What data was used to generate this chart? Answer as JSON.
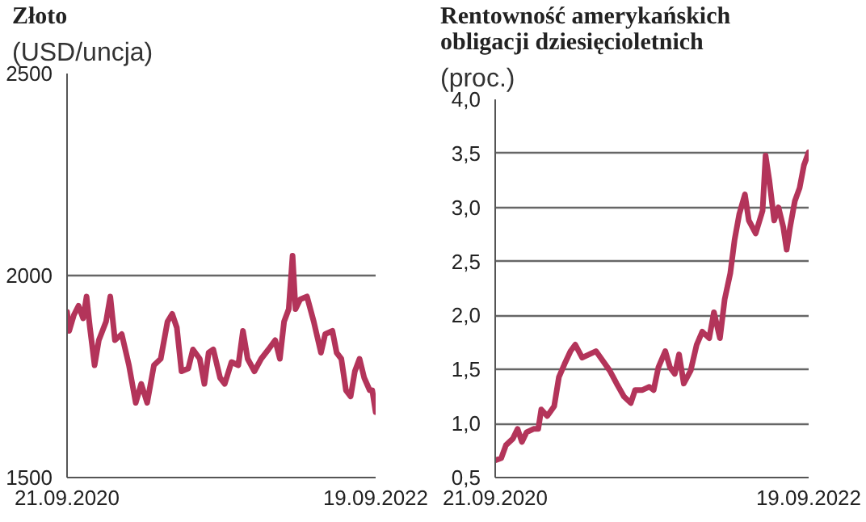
{
  "chart_data": [
    {
      "type": "line",
      "title": "Złoto",
      "subtitle": "(USD/uncja)",
      "color": "#b3345a",
      "grid": "y",
      "x": [
        "2020-09-21",
        "2020-09-26",
        "2020-10-07",
        "2020-10-18",
        "2020-10-29",
        "2020-11-06",
        "2020-11-14",
        "2020-11-25",
        "2020-12-05",
        "2020-12-22",
        "2021-01-01",
        "2021-01-12",
        "2021-01-28",
        "2021-02-14",
        "2021-03-02",
        "2021-03-15",
        "2021-03-29",
        "2021-04-14",
        "2021-04-30",
        "2021-05-16",
        "2021-05-27",
        "2021-06-07",
        "2021-06-18",
        "2021-07-04",
        "2021-07-15",
        "2021-07-31",
        "2021-08-11",
        "2021-08-21",
        "2021-09-01",
        "2021-09-17",
        "2021-09-28",
        "2021-10-14",
        "2021-10-30",
        "2021-11-10",
        "2021-11-21",
        "2021-12-07",
        "2021-12-23",
        "2022-01-09",
        "2022-01-25",
        "2022-02-05",
        "2022-02-15",
        "2022-02-26",
        "2022-03-07",
        "2022-03-14",
        "2022-03-25",
        "2022-04-10",
        "2022-04-26",
        "2022-05-13",
        "2022-05-23",
        "2022-06-09",
        "2022-06-19",
        "2022-06-30",
        "2022-07-11",
        "2022-07-22",
        "2022-08-01",
        "2022-08-12",
        "2022-08-23",
        "2022-09-05",
        "2022-09-11",
        "2022-09-19"
      ],
      "values": [
        1910,
        1863,
        1902,
        1925,
        1894,
        1948,
        1871,
        1778,
        1840,
        1886,
        1948,
        1840,
        1855,
        1778,
        1685,
        1732,
        1685,
        1778,
        1794,
        1886,
        1905,
        1871,
        1763,
        1770,
        1817,
        1794,
        1732,
        1809,
        1817,
        1747,
        1732,
        1786,
        1778,
        1863,
        1794,
        1763,
        1794,
        1817,
        1840,
        1794,
        1886,
        1917,
        2049,
        1917,
        1941,
        1948,
        1886,
        1809,
        1855,
        1863,
        1809,
        1794,
        1716,
        1701,
        1763,
        1794,
        1747,
        1716,
        1716,
        1662
      ],
      "xlim": [
        "2020-09-21",
        "2022-09-19"
      ],
      "xticks": [
        {
          "value": "2020-09-21",
          "label": "21.09.2020"
        },
        {
          "value": "2022-09-19",
          "label": "19.09.2022"
        }
      ],
      "ylim": [
        1500,
        2500
      ],
      "yticks": [
        1500,
        2000,
        2500
      ]
    },
    {
      "type": "line",
      "title": "Rentowność amerykańskich obligacji dziesięcioletnich",
      "subtitle": "(proc.)",
      "color": "#b3345a",
      "grid": "y",
      "x": [
        "2020-09-21",
        "2020-10-05",
        "2020-10-16",
        "2020-11-01",
        "2020-11-12",
        "2020-11-22",
        "2020-12-03",
        "2020-12-19",
        "2020-12-30",
        "2021-01-06",
        "2021-01-20",
        "2021-02-05",
        "2021-02-16",
        "2021-03-01",
        "2021-03-15",
        "2021-03-26",
        "2021-04-11",
        "2021-04-27",
        "2021-05-13",
        "2021-05-29",
        "2021-06-14",
        "2021-06-30",
        "2021-07-17",
        "2021-08-02",
        "2021-08-12",
        "2021-08-29",
        "2021-09-14",
        "2021-09-24",
        "2021-10-05",
        "2021-10-21",
        "2021-11-01",
        "2021-11-12",
        "2021-11-22",
        "2021-12-03",
        "2021-12-19",
        "2022-01-02",
        "2022-01-15",
        "2022-01-31",
        "2022-02-11",
        "2022-02-25",
        "2022-03-08",
        "2022-03-21",
        "2022-03-31",
        "2022-04-11",
        "2022-04-24",
        "2022-05-03",
        "2022-05-19",
        "2022-06-04",
        "2022-06-11",
        "2022-06-20",
        "2022-07-01",
        "2022-07-11",
        "2022-07-22",
        "2022-07-30",
        "2022-08-07",
        "2022-08-18",
        "2022-08-29",
        "2022-09-08",
        "2022-09-19"
      ],
      "values": [
        0.66,
        0.68,
        0.8,
        0.86,
        0.95,
        0.83,
        0.92,
        0.95,
        0.95,
        1.13,
        1.07,
        1.16,
        1.43,
        1.55,
        1.67,
        1.73,
        1.61,
        1.64,
        1.67,
        1.58,
        1.49,
        1.37,
        1.25,
        1.19,
        1.31,
        1.31,
        1.34,
        1.31,
        1.52,
        1.67,
        1.52,
        1.46,
        1.64,
        1.37,
        1.49,
        1.73,
        1.85,
        1.79,
        2.03,
        1.79,
        2.15,
        2.39,
        2.7,
        2.94,
        3.12,
        2.88,
        2.76,
        2.97,
        3.48,
        3.24,
        2.88,
        3.0,
        2.82,
        2.61,
        2.82,
        3.06,
        3.18,
        3.39,
        3.51
      ],
      "xlim": [
        "2020-09-21",
        "2022-09-19"
      ],
      "xticks": [
        {
          "value": "2020-09-21",
          "label": "21.09.2020"
        },
        {
          "value": "2022-09-19",
          "label": "19.09.2022"
        }
      ],
      "ylim": [
        0.5,
        4.0
      ],
      "yticks": [
        {
          "value": 0.5,
          "label": "0,5"
        },
        {
          "value": 1.0,
          "label": "1,0"
        },
        {
          "value": 1.5,
          "label": "1,5"
        },
        {
          "value": 2.0,
          "label": "2,0"
        },
        {
          "value": 2.5,
          "label": "2,5"
        },
        {
          "value": 3.0,
          "label": "3,0"
        },
        {
          "value": 3.5,
          "label": "3,5"
        },
        {
          "value": 4.0,
          "label": "4,0"
        }
      ]
    }
  ]
}
